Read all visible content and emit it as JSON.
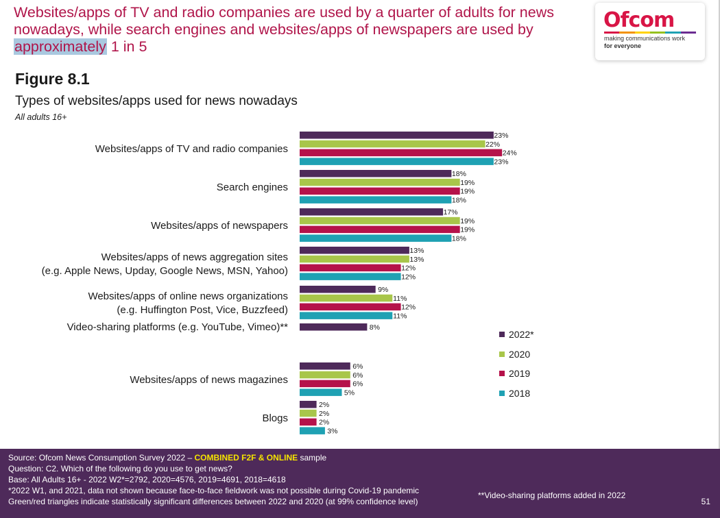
{
  "headline": {
    "before": "Websites/apps of TV and radio companies are used by a quarter of adults for news nowadays, while search engines and websites/apps of newspapers are used by ",
    "highlight": "approximately",
    "after": " 1 in 5"
  },
  "logo": {
    "word": "Ofcom",
    "tag1": "making communications work",
    "tag2": "for everyone"
  },
  "figure_label": "Figure 8.1",
  "page_number": "51",
  "chart_data": {
    "type": "bar",
    "orientation": "horizontal",
    "title": "Types of websites/apps used for news nowadays",
    "subtitle": "All adults 16+",
    "categories": [
      {
        "line1": "Websites/apps of TV and radio companies",
        "line2": ""
      },
      {
        "line1": "Search engines",
        "line2": ""
      },
      {
        "line1": "Websites/apps of newspapers",
        "line2": ""
      },
      {
        "line1": "Websites/apps of news aggregation sites",
        "line2": "(e.g. Apple News, Upday, Google News, MSN, Yahoo)"
      },
      {
        "line1": "Websites/apps of online news organizations",
        "line2": "(e.g. Huffington Post, Vice, Buzzfeed)"
      },
      {
        "line1": "Video-sharing platforms (e.g. YouTube, Vimeo)**",
        "line2": ""
      },
      {
        "line1": "Websites/apps of news magazines",
        "line2": ""
      },
      {
        "line1": "Blogs",
        "line2": ""
      }
    ],
    "series": [
      {
        "name": "2022*",
        "color": "#4e2a5a",
        "values": [
          23,
          18,
          17,
          13,
          9,
          8,
          6,
          2
        ]
      },
      {
        "name": "2020",
        "color": "#a8c64a",
        "values": [
          22,
          19,
          19,
          13,
          11,
          null,
          6,
          2
        ]
      },
      {
        "name": "2019",
        "color": "#b5124a",
        "values": [
          24,
          19,
          19,
          12,
          12,
          null,
          6,
          2
        ]
      },
      {
        "name": "2018",
        "color": "#1fa1b3",
        "values": [
          23,
          18,
          18,
          12,
          11,
          null,
          5,
          3
        ]
      }
    ],
    "value_suffix": "%",
    "legend_position": "right"
  },
  "footer": {
    "source_prefix": "Source: Ofcom News Consumption Survey 2022 – ",
    "source_highlight": "COMBINED F2F & ONLINE",
    "source_suffix": " sample",
    "question": "Question: C2. Which of the following do you use to get news?",
    "base": "Base: All Adults 16+ - 2022 W2*=2792, 2020=4576, 2019=4691, 2018=4618",
    "note1": "*2022 W1, and 2021, data not shown because face-to-face fieldwork was not possible during Covid-19 pandemic",
    "note2": "**Video-sharing platforms added in 2022",
    "note3": "Green/red triangles indicate statistically significant differences between 2022 and 2020 (at 99% confidence level)"
  }
}
